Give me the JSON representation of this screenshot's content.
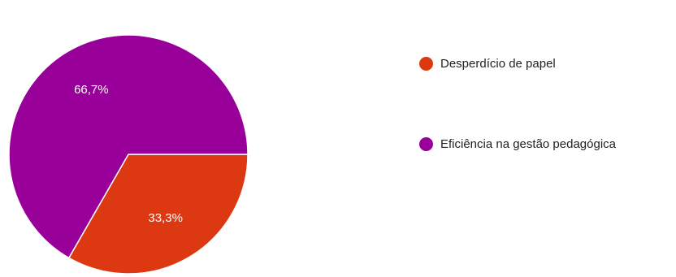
{
  "chart_data": {
    "type": "pie",
    "categories": [
      "Desperdício de papel",
      "Eficiência na gestão pedagógica"
    ],
    "values": [
      33.3,
      66.7
    ],
    "data_labels": [
      "33,3%",
      "66,7%"
    ],
    "colors": [
      "#dc3912",
      "#990099"
    ],
    "start_angle_deg": 90,
    "legend_position": "right"
  },
  "legend": {
    "items": [
      {
        "label": "Desperdício de papel",
        "color": "#dc3912"
      },
      {
        "label": "Eficiência na gestão pedagógica",
        "color": "#990099"
      }
    ]
  }
}
